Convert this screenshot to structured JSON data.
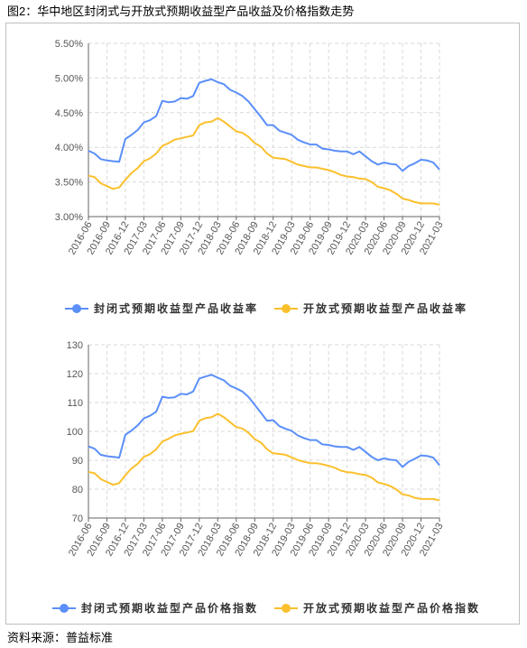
{
  "figure_title": "图2：华中地区封闭式与开放式预期收益型产品收益及价格指数走势",
  "source": "资料来源：普益标准",
  "colors": {
    "closed": "#5b8ff9",
    "open": "#fbc02d",
    "grid": "#d9d9d9",
    "axis": "#666666"
  },
  "chart_data": [
    {
      "type": "line",
      "title": "",
      "ylim": [
        3.0,
        5.5
      ],
      "yticks": [
        3.0,
        3.5,
        4.0,
        4.5,
        5.0,
        5.5
      ],
      "y_tick_labels": [
        "3.00%",
        "3.50%",
        "4.00%",
        "4.50%",
        "5.00%",
        "5.50%"
      ],
      "x_tick_labels": [
        "2016-06",
        "2016-09",
        "2016-12",
        "2017-03",
        "2017-06",
        "2017-09",
        "2017-12",
        "2018-03",
        "2018-06",
        "2018-09",
        "2018-12",
        "2019-03",
        "2019-06",
        "2019-09",
        "2019-12",
        "2020-03",
        "2020-06",
        "2020-09",
        "2020-12",
        "2021-03"
      ],
      "grid": true,
      "legend_position": "bottom",
      "series": [
        {
          "name": "封闭式预期收益型产品收益率",
          "color": "#5b8ff9",
          "values": [
            3.95,
            3.91,
            3.83,
            3.81,
            3.8,
            3.79,
            4.12,
            4.18,
            4.25,
            4.36,
            4.39,
            4.45,
            4.67,
            4.65,
            4.66,
            4.71,
            4.7,
            4.74,
            4.93,
            4.96,
            4.98,
            4.94,
            4.91,
            4.83,
            4.79,
            4.74,
            4.66,
            4.55,
            4.44,
            4.32,
            4.32,
            4.24,
            4.21,
            4.18,
            4.11,
            4.07,
            4.04,
            4.04,
            3.98,
            3.97,
            3.95,
            3.94,
            3.94,
            3.9,
            3.94,
            3.87,
            3.8,
            3.75,
            3.78,
            3.76,
            3.75,
            3.66,
            3.73,
            3.77,
            3.82,
            3.81,
            3.78,
            3.68
          ]
        },
        {
          "name": "开放式预期收益型产品收益率",
          "color": "#fbc02d",
          "values": [
            3.59,
            3.57,
            3.48,
            3.44,
            3.4,
            3.42,
            3.53,
            3.63,
            3.7,
            3.8,
            3.84,
            3.91,
            4.02,
            4.06,
            4.11,
            4.13,
            4.15,
            4.17,
            4.32,
            4.36,
            4.37,
            4.42,
            4.37,
            4.3,
            4.23,
            4.21,
            4.15,
            4.06,
            4.01,
            3.91,
            3.85,
            3.84,
            3.83,
            3.79,
            3.75,
            3.73,
            3.71,
            3.71,
            3.69,
            3.67,
            3.64,
            3.6,
            3.58,
            3.57,
            3.55,
            3.54,
            3.5,
            3.43,
            3.41,
            3.38,
            3.33,
            3.26,
            3.24,
            3.21,
            3.19,
            3.19,
            3.19,
            3.17
          ]
        }
      ]
    },
    {
      "type": "line",
      "title": "",
      "ylim": [
        70,
        130
      ],
      "yticks": [
        70,
        80,
        90,
        100,
        110,
        120,
        130
      ],
      "y_tick_labels": [
        "70",
        "80",
        "90",
        "100",
        "110",
        "120",
        "130"
      ],
      "x_tick_labels": [
        "2016-06",
        "2016-09",
        "2016-12",
        "2017-03",
        "2017-06",
        "2017-09",
        "2017-12",
        "2018-03",
        "2018-06",
        "2018-09",
        "2018-12",
        "2019-03",
        "2019-06",
        "2019-09",
        "2019-12",
        "2020-03",
        "2020-06",
        "2020-09",
        "2020-12",
        "2021-03"
      ],
      "grid": true,
      "legend_position": "bottom",
      "series": [
        {
          "name": "封闭式预期收益型产品价格指数",
          "color": "#5b8ff9",
          "values": [
            94.8,
            94.0,
            91.9,
            91.4,
            91.2,
            90.9,
            98.8,
            100.3,
            102.1,
            104.5,
            105.4,
            106.8,
            112.0,
            111.6,
            111.8,
            113.0,
            112.8,
            113.8,
            118.3,
            119.0,
            119.6,
            118.6,
            117.7,
            115.8,
            114.9,
            113.8,
            111.9,
            109.2,
            106.5,
            103.7,
            103.9,
            101.8,
            100.9,
            100.2,
            98.6,
            97.7,
            97.0,
            97.0,
            95.5,
            95.3,
            94.8,
            94.6,
            94.6,
            93.6,
            94.6,
            92.9,
            91.2,
            90.0,
            90.7,
            90.2,
            90.0,
            87.7,
            89.5,
            90.5,
            91.7,
            91.5,
            90.9,
            88.3
          ]
        },
        {
          "name": "开放式预期收益型产品价格指数",
          "color": "#fbc02d",
          "values": [
            86.0,
            85.5,
            83.5,
            82.5,
            81.5,
            82.1,
            84.8,
            87.2,
            88.8,
            91.2,
            92.1,
            93.8,
            96.5,
            97.4,
            98.6,
            99.2,
            99.6,
            100.1,
            103.7,
            104.6,
            104.9,
            106.1,
            104.9,
            103.2,
            101.5,
            101.0,
            99.5,
            97.3,
            96.2,
            93.8,
            92.4,
            92.2,
            91.9,
            91.0,
            90.1,
            89.5,
            89.0,
            89.0,
            88.6,
            88.1,
            87.4,
            86.4,
            85.9,
            85.7,
            85.2,
            84.9,
            84.0,
            82.3,
            81.8,
            81.1,
            79.9,
            78.2,
            77.8,
            77.0,
            76.6,
            76.6,
            76.6,
            76.1
          ]
        }
      ]
    }
  ]
}
